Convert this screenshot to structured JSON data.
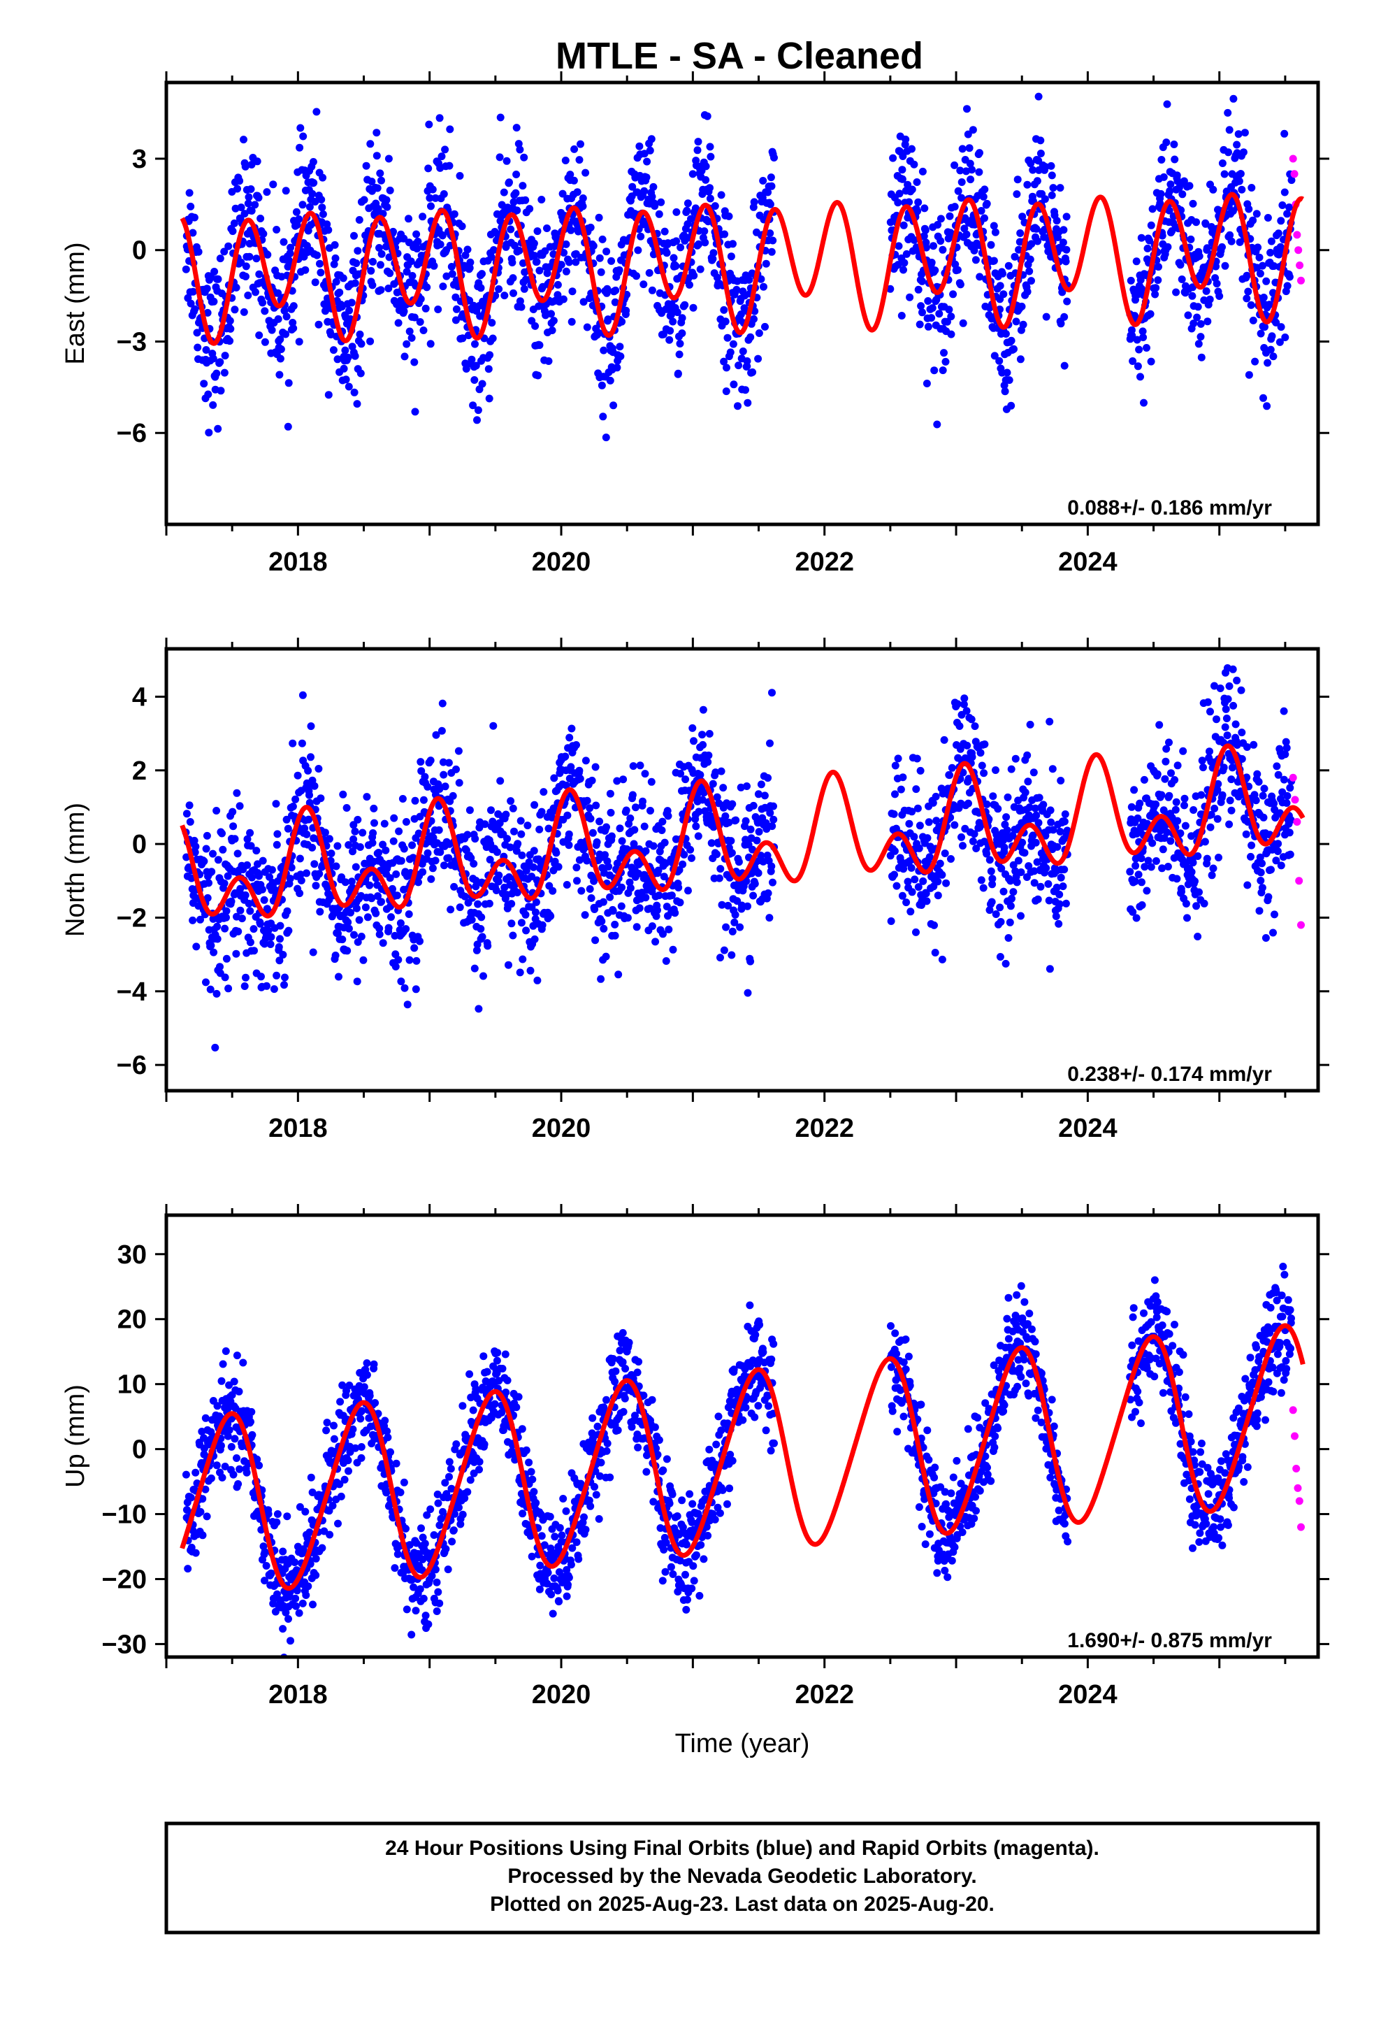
{
  "title": "MTLE  - SA - Cleaned",
  "footer": {
    "lines": [
      "24 Hour Positions Using Final Orbits (blue) and Rapid Orbits (magenta).",
      "Processed by the Nevada Geodetic Laboratory.",
      "Plotted on 2025-Aug-23. Last data on 2025-Aug-20."
    ]
  },
  "colors": {
    "final": "#0000ff",
    "rapid": "#ff00ff",
    "model": "#ff0000",
    "frame": "#000000"
  },
  "chart_data": [
    {
      "type": "scatter",
      "name": "east",
      "ylabel": "East (mm)",
      "xlabel": "",
      "rate_label": "0.088+/- 0.186 mm/yr",
      "xlim": [
        2017.0,
        2025.75
      ],
      "ylim": [
        -9.0,
        5.5
      ],
      "xticks": [
        2018,
        2020,
        2022,
        2024
      ],
      "yticks": [
        3,
        0,
        -3,
        -6
      ],
      "ytick_labels": [
        "3",
        "0",
        "−3",
        "−6"
      ],
      "model": {
        "offset": -0.4,
        "trend": 0.088,
        "a1": 0.6,
        "p1": 2.3,
        "a2": 1.75,
        "p2": 0.2,
        "gaps": [
          [
            2021.6,
            2022.5
          ],
          [
            2023.85,
            2024.3
          ]
        ]
      },
      "series": [
        {
          "name": "Final Orbits",
          "spans": [
            [
              2017.15,
              2021.62
            ],
            [
              2022.5,
              2023.85
            ],
            [
              2024.32,
              2025.55
            ]
          ],
          "noise": 1.3
        },
        {
          "name": "Rapid Orbits",
          "spans": [
            [
              2025.56,
              2025.62
            ]
          ],
          "values": [
            3.0,
            2.5,
            1.5,
            0.5,
            0.0,
            -0.5,
            -1.0
          ]
        }
      ]
    },
    {
      "type": "scatter",
      "name": "north",
      "ylabel": "North (mm)",
      "xlabel": "",
      "rate_label": "0.238+/- 0.174 mm/yr",
      "xlim": [
        2017.0,
        2025.75
      ],
      "ylim": [
        -6.7,
        5.3
      ],
      "xticks": [
        2018,
        2020,
        2022,
        2024
      ],
      "yticks": [
        4,
        2,
        0,
        -2,
        -4,
        -6
      ],
      "ytick_labels": [
        "4",
        "2",
        "0",
        "−2",
        "−4",
        "−6"
      ],
      "model": {
        "offset": -0.1,
        "trend": 0.238,
        "a1": 0.9,
        "p1": 1.1,
        "a2": 0.9,
        "p2": 0.8,
        "gaps": [
          [
            2021.6,
            2022.5
          ],
          [
            2023.85,
            2024.3
          ]
        ]
      },
      "series": [
        {
          "name": "Final Orbits",
          "spans": [
            [
              2017.15,
              2021.62
            ],
            [
              2022.5,
              2023.85
            ],
            [
              2024.32,
              2025.55
            ]
          ],
          "noise": 1.1
        },
        {
          "name": "Rapid Orbits",
          "spans": [
            [
              2025.56,
              2025.62
            ]
          ],
          "values": [
            1.8,
            1.2,
            0.6,
            -1.0,
            -2.2
          ]
        }
      ]
    },
    {
      "type": "scatter",
      "name": "up",
      "ylabel": "Up (mm)",
      "xlabel": "Time (year)",
      "rate_label": "1.690+/- 0.875 mm/yr",
      "xlim": [
        2017.0,
        2025.75
      ],
      "ylim": [
        -32.0,
        36.0
      ],
      "xticks": [
        2018,
        2020,
        2022,
        2024
      ],
      "yticks": [
        30,
        20,
        10,
        0,
        -10,
        -20,
        -30
      ],
      "ytick_labels": [
        "30",
        "20",
        "10",
        "0",
        "−10",
        "−20",
        "−30"
      ],
      "model": {
        "offset": -2.5,
        "trend": 1.69,
        "a1": 13.5,
        "p1": -1.35,
        "a2": 1.5,
        "p2": 0.5,
        "gaps": [
          [
            2021.6,
            2022.5
          ],
          [
            2023.85,
            2024.3
          ]
        ]
      },
      "series": [
        {
          "name": "Final Orbits",
          "spans": [
            [
              2017.15,
              2021.62
            ],
            [
              2022.5,
              2023.85
            ],
            [
              2024.32,
              2025.55
            ]
          ],
          "noise": 4.0
        },
        {
          "name": "Rapid Orbits",
          "spans": [
            [
              2025.56,
              2025.62
            ]
          ],
          "values": [
            6.0,
            2.0,
            -3.0,
            -6.0,
            -8.0,
            -12.0
          ]
        }
      ]
    }
  ]
}
